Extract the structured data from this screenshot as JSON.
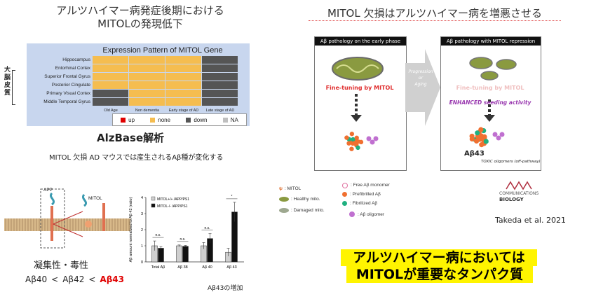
{
  "left": {
    "title_line1": "アルツハイマー病発症後期における",
    "title_line2": "MITOLの発現低下",
    "heatmap_title": "Expression Pattern of MITOL Gene",
    "side_label": "大脳皮質",
    "rows": [
      "Hippocampus",
      "Entorhinal Cortex",
      "Superior Frontal Gyrus",
      "Posterior Cingulate",
      "Primary Visual Cortex",
      "Middle Temporal Gyrus"
    ],
    "cols": [
      "Old Age",
      "Non dementia",
      "Early stage of AD",
      "Late stage of AD"
    ],
    "legend": [
      {
        "label": "up",
        "color": "#e00000"
      },
      {
        "label": "none",
        "color": "#f5bd50"
      },
      {
        "label": "down",
        "color": "#555555"
      },
      {
        "label": "NA",
        "color": "#bfbfbf"
      }
    ],
    "colors": {
      "none": "#f5bd50",
      "down": "#555555",
      "na": "#bfbfbf"
    },
    "alzbase": "AlzBase解析",
    "subtitle": "MITOL 欠損 AD マウスでは産生されるAβ種が変化する",
    "diagram_labels": {
      "app": "APP",
      "mitol": "MITOL"
    },
    "toxicity": "凝集性・毒性",
    "ab_order": [
      "Aβ40",
      "<",
      "Aβ42",
      "<",
      "Aβ43"
    ],
    "ab_highlight_color": "#e00000",
    "increase_note": "Aβ43の増加"
  },
  "chart_data": {
    "type": "bar",
    "categories": [
      "Total Aβ",
      "Aβ 38",
      "Aβ 40",
      "Aβ 43"
    ],
    "series": [
      {
        "name": "MITOL+/+ /APP/PS1",
        "color": "#cfcfcf",
        "values": [
          1.0,
          1.0,
          1.0,
          0.6
        ]
      },
      {
        "name": "MITOL-/- /APP/PS1",
        "color": "#111111",
        "values": [
          0.85,
          0.97,
          1.45,
          3.1
        ]
      }
    ],
    "errors": [
      [
        0.3,
        0.05,
        0.2,
        0.25
      ],
      [
        0.1,
        0.05,
        0.3,
        0.6
      ]
    ],
    "ylabel": "Aβ amount normalized to Aβ 42 (ratio)",
    "ylim": [
      0,
      4
    ],
    "yticks": [
      0,
      1,
      2,
      3,
      4
    ],
    "significance": [
      "n.s.",
      "n.s.",
      "n.s.",
      "*"
    ]
  },
  "right": {
    "title": "MITOL 欠損はアルツハイマー病を増悪させる",
    "panel1_header": "Aβ pathology on the early phase",
    "panel1_fine": "Fine-tuning by MITOL",
    "arrow_text": [
      "Progression",
      "or",
      "Aging"
    ],
    "panel2_header": "Aβ pathology with MITOL repression",
    "panel2_fine": "Fine-tuning by MITOL",
    "panel2_enhanced": "ENHANCED seeding activity",
    "ab43_label": "Aβ43",
    "toxic_label": "TOXIC oligomers (off-pathway)",
    "legend_left": [
      ": MITOL",
      ": Healthy mito.",
      ": Damaged mito."
    ],
    "legend_right": [
      ": Free Aβ monomer",
      ": Prefibrilled Aβ",
      ": Fibrilized Aβ",
      ": Aβ oligomer"
    ],
    "journal": [
      "COMMUNICATIONS",
      "BIOLOGY"
    ],
    "citation": "Takeda et al. 2021",
    "highlight_line1": "アルツハイマー病においては",
    "highlight_line2": "MITOLが重要なタンパク質"
  }
}
